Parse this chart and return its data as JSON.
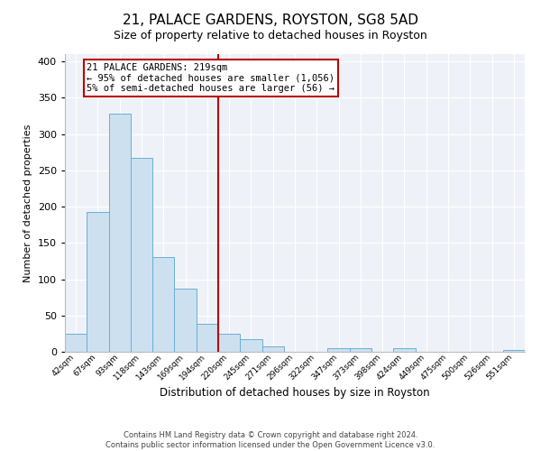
{
  "title": "21, PALACE GARDENS, ROYSTON, SG8 5AD",
  "subtitle": "Size of property relative to detached houses in Royston",
  "xlabel": "Distribution of detached houses by size in Royston",
  "ylabel": "Number of detached properties",
  "bin_labels": [
    "42sqm",
    "67sqm",
    "93sqm",
    "118sqm",
    "143sqm",
    "169sqm",
    "194sqm",
    "220sqm",
    "245sqm",
    "271sqm",
    "296sqm",
    "322sqm",
    "347sqm",
    "373sqm",
    "398sqm",
    "424sqm",
    "449sqm",
    "475sqm",
    "500sqm",
    "526sqm",
    "551sqm"
  ],
  "bar_heights": [
    25,
    193,
    328,
    267,
    131,
    87,
    39,
    25,
    18,
    8,
    0,
    0,
    5,
    5,
    0,
    5,
    0,
    0,
    0,
    0,
    3
  ],
  "bar_color": "#cce0f0",
  "bar_edge_color": "#6baed6",
  "vline_x_idx": 7,
  "vline_color": "#bb0000",
  "annotation_title": "21 PALACE GARDENS: 219sqm",
  "annotation_line1": "← 95% of detached houses are smaller (1,056)",
  "annotation_line2": "5% of semi-detached houses are larger (56) →",
  "annotation_box_edge": "#bb0000",
  "ylim": [
    0,
    410
  ],
  "yticks": [
    0,
    50,
    100,
    150,
    200,
    250,
    300,
    350,
    400
  ],
  "footer_line1": "Contains HM Land Registry data © Crown copyright and database right 2024.",
  "footer_line2": "Contains public sector information licensed under the Open Government Licence v3.0.",
  "bg_color": "#eef2f8",
  "fig_bg_color": "#ffffff"
}
